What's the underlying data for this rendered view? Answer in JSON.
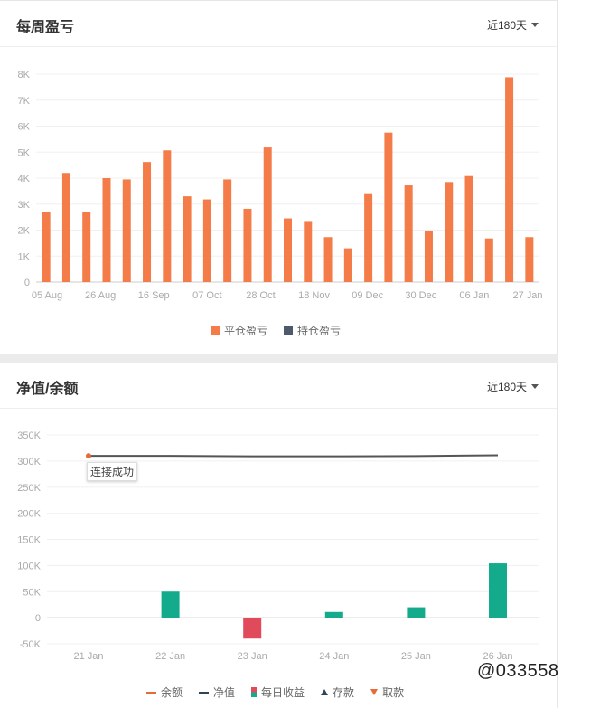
{
  "panel1": {
    "title": "每周盈亏",
    "range_label": "近180天",
    "legend": [
      {
        "label": "平仓盈亏",
        "color": "#f47c48"
      },
      {
        "label": "持仓盈亏",
        "color": "#4e5a6b"
      }
    ]
  },
  "panel2": {
    "title": "净值/余额",
    "range_label": "近180天",
    "tooltip": "连接成功",
    "legend": [
      {
        "label": "余额",
        "color": "#e86a39",
        "icon": "line"
      },
      {
        "label": "净值",
        "color": "#2e4354",
        "icon": "line"
      },
      {
        "label": "每日收益",
        "color": "#13ab8c",
        "icon": "dual-bar"
      },
      {
        "label": "存款",
        "color": "#2e4354",
        "icon": "triangle-up"
      },
      {
        "label": "取款",
        "color": "#e86a39",
        "icon": "triangle-down"
      }
    ]
  },
  "watermark": "@033558",
  "chart_data": [
    {
      "type": "bar",
      "title": "每周盈亏",
      "y_ticks": [
        "0",
        "1K",
        "2K",
        "3K",
        "4K",
        "5K",
        "6K",
        "7K",
        "8K"
      ],
      "ylim": [
        0,
        8000
      ],
      "x_ticks": [
        "05 Aug",
        "26 Aug",
        "16 Sep",
        "07 Oct",
        "28 Oct",
        "18 Nov",
        "09 Dec",
        "30 Dec",
        "06 Jan",
        "27 Jan"
      ],
      "grid": true,
      "legend_position": "bottom-center",
      "series": [
        {
          "name": "平仓盈亏",
          "color": "#f47c48",
          "values": [
            2700,
            4200,
            2700,
            4000,
            3950,
            4620,
            5070,
            3300,
            3180,
            3950,
            2820,
            5180,
            2450,
            2350,
            1730,
            1300,
            3420,
            5750,
            3720,
            1970,
            3850,
            4080,
            1680,
            7880,
            1730
          ]
        },
        {
          "name": "持仓盈亏",
          "color": "#4e5a6b",
          "values": []
        }
      ]
    },
    {
      "type": "line+bar",
      "title": "净值/余额",
      "y_ticks": [
        "-50K",
        "0",
        "50K",
        "100K",
        "150K",
        "200K",
        "250K",
        "300K",
        "350K"
      ],
      "ylim": [
        -50000,
        350000
      ],
      "x_ticks": [
        "21 Jan",
        "22 Jan",
        "23 Jan",
        "24 Jan",
        "25 Jan",
        "26 Jan"
      ],
      "grid": true,
      "legend_position": "bottom-center",
      "series": [
        {
          "name": "净值",
          "type": "line",
          "color": "#555555",
          "values": [
            310000,
            310000,
            309000,
            309000,
            309500,
            311000
          ]
        },
        {
          "name": "每日收益",
          "type": "bar",
          "values": [
            0,
            50000,
            -40000,
            11000,
            20000,
            104000
          ]
        }
      ],
      "colors": {
        "positive": "#13ab8c",
        "negative": "#e04a5a",
        "balance_marker": "#e86a39"
      }
    }
  ]
}
